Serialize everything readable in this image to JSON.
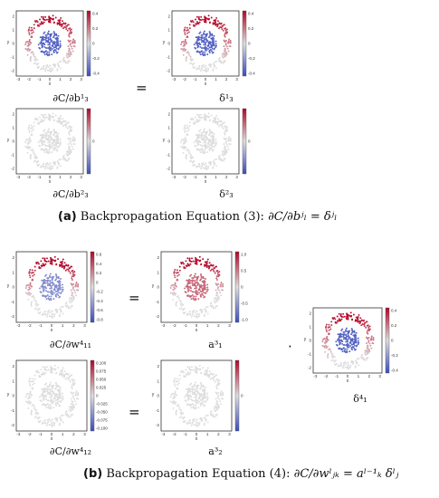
{
  "theme": {
    "red": "#b40426",
    "blue": "#3b4cc0",
    "neutral": "#dddddd",
    "plot_bg": "#ffffff"
  },
  "axis_text": {
    "x_label": "x",
    "y_label": "y"
  },
  "section_a": {
    "caption_label": "(a)",
    "caption_text": "Backpropagation Equation (3):",
    "caption_formula": "∂C/∂bʲₗ = δʲₗ",
    "equals": "="
  },
  "section_b": {
    "caption_label": "(b)",
    "caption_text": "Backpropagation Equation (4):",
    "caption_formula": "∂C/∂wˡⱼₖ = aˡ⁻¹ₖ δˡⱼ",
    "equals_1": "=",
    "equals_2": "=",
    "dot": "·"
  },
  "plots": [
    {
      "id": "a_tl",
      "label": "∂C/∂b¹₃",
      "mode": "signed",
      "cbar_ticks": [
        "0.4",
        "0.2",
        "0",
        "-0.2",
        "-0.4"
      ],
      "x_ticks": [
        "-3",
        "-2",
        "-1",
        "0",
        "1",
        "2",
        "3"
      ],
      "y_ticks": [
        "2",
        "1",
        "0",
        "-1",
        "-2"
      ]
    },
    {
      "id": "a_tr",
      "label": "δ¹₃",
      "mode": "signed",
      "cbar_ticks": [
        "0.4",
        "0.2",
        "0",
        "-0.2",
        "-0.4"
      ],
      "x_ticks": [
        "-3",
        "-2",
        "-1",
        "0",
        "1",
        "2",
        "3"
      ],
      "y_ticks": [
        "2",
        "1",
        "0",
        "-1",
        "-2"
      ]
    },
    {
      "id": "a_bl",
      "label": "∂C/∂b²₃",
      "mode": "flat",
      "cbar_ticks": [
        "0"
      ],
      "x_ticks": [
        "-3",
        "-2",
        "-1",
        "0",
        "1",
        "2",
        "3"
      ],
      "y_ticks": [
        "2",
        "1",
        "0",
        "-1",
        "-2"
      ]
    },
    {
      "id": "a_br",
      "label": "δ²₃",
      "mode": "flat",
      "cbar_ticks": [
        "0"
      ],
      "x_ticks": [
        "-3",
        "-2",
        "-1",
        "0",
        "1",
        "2",
        "3"
      ],
      "y_ticks": [
        "2",
        "1",
        "0",
        "-1",
        "-2"
      ]
    },
    {
      "id": "b_tl",
      "label": "∂C/∂w⁴₁₁",
      "mode": "grad",
      "cbar_ticks": [
        "0.6",
        "0.4",
        "0.2",
        "0",
        "-0.2",
        "-0.4",
        "-0.6",
        "-0.8"
      ],
      "x_ticks": [
        "-3",
        "-2",
        "-1",
        "0",
        "1",
        "2",
        "3"
      ],
      "y_ticks": [
        "2",
        "1",
        "0",
        "-1",
        "-2"
      ]
    },
    {
      "id": "b_tr",
      "label": "a³₁",
      "mode": "act",
      "cbar_ticks": [
        "1.0",
        "0.5",
        "0",
        "-0.5",
        "-1.0"
      ],
      "x_ticks": [
        "-3",
        "-2",
        "-1",
        "0",
        "1",
        "2",
        "3"
      ],
      "y_ticks": [
        "2",
        "1",
        "0",
        "-1",
        "-2"
      ]
    },
    {
      "id": "b_bl",
      "label": "∂C/∂w⁴₁₂",
      "mode": "flat",
      "cbar_ticks": [
        "0.100",
        "0.075",
        "0.050",
        "0.025",
        "0",
        "-0.025",
        "-0.050",
        "-0.075",
        "-0.100"
      ],
      "x_ticks": [
        "-3",
        "-2",
        "-1",
        "0",
        "1",
        "2",
        "3"
      ],
      "y_ticks": [
        "2",
        "1",
        "0",
        "-1",
        "-2"
      ]
    },
    {
      "id": "b_br",
      "label": "a³₂",
      "mode": "flat",
      "cbar_ticks": [
        "0"
      ],
      "x_ticks": [
        "-3",
        "-2",
        "-1",
        "0",
        "1",
        "2",
        "3"
      ],
      "y_ticks": [
        "2",
        "1",
        "0",
        "-1",
        "-2"
      ]
    },
    {
      "id": "b_side",
      "label": "δ⁴₁",
      "mode": "signed",
      "cbar_ticks": [
        "0.4",
        "0.2",
        "0",
        "-0.2",
        "-0.4"
      ],
      "x_ticks": [
        "-3",
        "-2",
        "-1",
        "0",
        "1",
        "2",
        "3"
      ],
      "y_ticks": [
        "2",
        "1",
        "0",
        "-1",
        "-2"
      ]
    }
  ]
}
